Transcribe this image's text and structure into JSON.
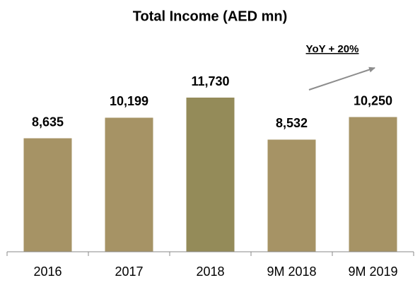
{
  "chart_data": {
    "type": "bar",
    "title": "Total Income (AED mn)",
    "categories": [
      "2016",
      "2017",
      "2018",
      "9M 2018",
      "9M 2019"
    ],
    "values": [
      8635,
      10199,
      11730,
      8532,
      10250
    ],
    "value_labels": [
      "8,635",
      "10,199",
      "11,730",
      "8,532",
      "10,250"
    ],
    "colors": [
      "#a69365",
      "#a69365",
      "#948b59",
      "#a69365",
      "#a69365"
    ],
    "annotation": "YoY + 20%"
  }
}
